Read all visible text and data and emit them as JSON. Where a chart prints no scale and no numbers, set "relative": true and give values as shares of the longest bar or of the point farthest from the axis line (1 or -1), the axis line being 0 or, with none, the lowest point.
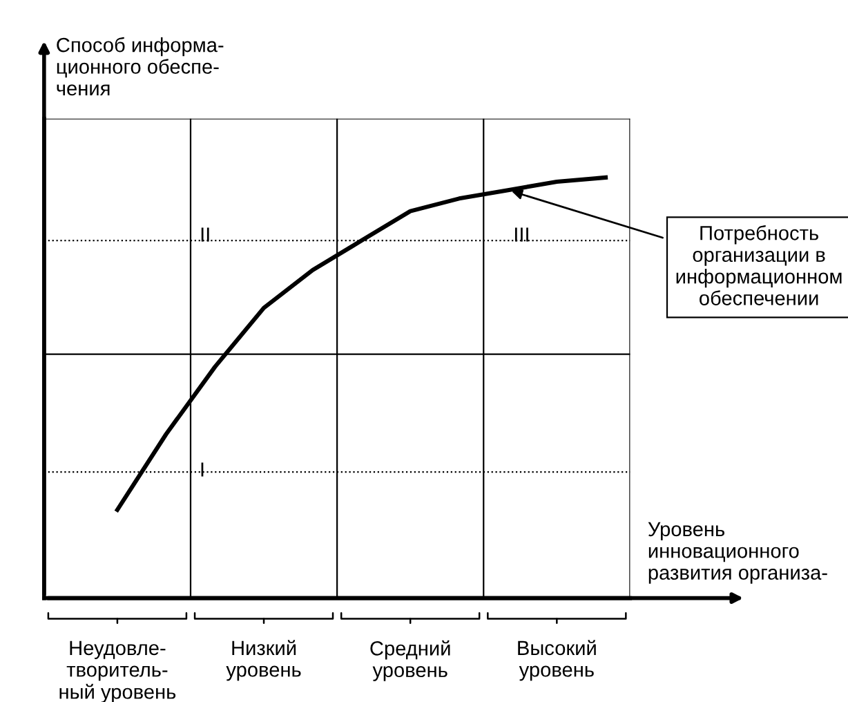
{
  "chart_data": {
    "type": "line",
    "relative": true,
    "ylabel": "Способ информа-\nционного обеспе-\nчения",
    "xlabel": "Уровень\nинновационного\nразвития организа-",
    "categories": [
      null,
      "Неудовле-\nтворитель-\nный уровень",
      null,
      null,
      "Низкий\nуровень",
      null,
      null,
      "Средний\nуровень",
      null,
      null,
      "Высокий\nуровень",
      null
    ],
    "series": [
      {
        "color": "#000000",
        "values": [
          null,
          0.21,
          0.39,
          0.55,
          0.69,
          0.78,
          0.85,
          0.92,
          0.95,
          0.97,
          0.99,
          1.0
        ]
      }
    ],
    "marker": "none",
    "line_style": "solid",
    "grid": false,
    "ref_lines": [
      {
        "axis": "y",
        "value": 0.3,
        "color": "#000000",
        "line_style": "dotted"
      },
      {
        "axis": "y",
        "value": 0.58,
        "color": "#000000",
        "line_style": "solid"
      },
      {
        "axis": "y",
        "value": 0.85,
        "color": "#000000",
        "line_style": "dotted"
      },
      {
        "axis": "y",
        "value": 1.14,
        "color": "#000000",
        "line_style": "solid"
      }
    ],
    "annotations": [
      "I",
      "II",
      "III",
      "Потребность\nорганизации в\nинформационном\nобеспечении"
    ]
  }
}
